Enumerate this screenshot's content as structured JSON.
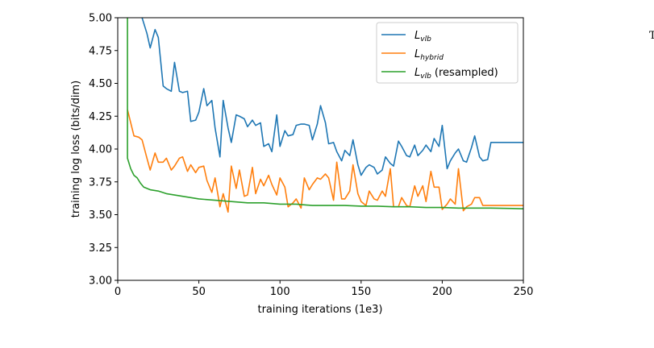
{
  "chart_data": {
    "type": "line",
    "xlabel": "training iterations (1e3)",
    "ylabel": "training log loss (bits/dim)",
    "xlim": [
      0,
      250
    ],
    "ylim": [
      3.0,
      5.0
    ],
    "x_ticks": [
      "0",
      "50",
      "100",
      "150",
      "200",
      "250"
    ],
    "y_ticks": [
      "3.00",
      "3.25",
      "3.50",
      "3.75",
      "4.00",
      "4.25",
      "4.50",
      "4.75",
      "5.00"
    ],
    "grid": false,
    "legend_position": "top-right",
    "edge_glyph": "T",
    "series": [
      {
        "name": "L_vlb",
        "legend_main": "L",
        "legend_sub": "vlb",
        "legend_suffix": "",
        "color": "#1f77b4",
        "x": [
          15,
          18,
          20,
          23,
          25,
          28,
          30,
          33,
          35,
          38,
          40,
          43,
          45,
          48,
          50,
          53,
          55,
          58,
          60,
          63,
          65,
          68,
          70,
          73,
          75,
          78,
          80,
          83,
          85,
          88,
          90,
          93,
          95,
          98,
          100,
          103,
          105,
          108,
          110,
          113,
          115,
          118,
          120,
          123,
          125,
          128,
          130,
          133,
          135,
          138,
          140,
          143,
          145,
          148,
          150,
          153,
          155,
          158,
          160,
          163,
          165,
          168,
          170,
          173,
          175,
          178,
          180,
          183,
          185,
          188,
          190,
          193,
          195,
          198,
          200,
          203,
          205,
          208,
          210,
          213,
          215,
          218,
          220,
          223,
          225,
          228,
          230,
          233,
          235,
          238,
          240,
          243,
          245,
          248,
          250
        ],
        "y": [
          5.0,
          4.88,
          4.77,
          4.91,
          4.85,
          4.48,
          4.46,
          4.44,
          4.66,
          4.44,
          4.43,
          4.44,
          4.21,
          4.22,
          4.28,
          4.46,
          4.33,
          4.37,
          4.16,
          3.94,
          4.37,
          4.16,
          4.05,
          4.26,
          4.25,
          4.23,
          4.17,
          4.22,
          4.18,
          4.2,
          4.02,
          4.04,
          3.98,
          4.26,
          4.02,
          4.14,
          4.1,
          4.11,
          4.18,
          4.19,
          4.19,
          4.18,
          4.07,
          4.19,
          4.33,
          4.2,
          4.04,
          4.05,
          3.98,
          3.91,
          3.99,
          3.95,
          4.07,
          3.88,
          3.8,
          3.86,
          3.88,
          3.86,
          3.81,
          3.84,
          3.94,
          3.89,
          3.87,
          4.06,
          4.02,
          3.95,
          3.94,
          4.03,
          3.95,
          3.99,
          4.03,
          3.98,
          4.08,
          4.02,
          4.18,
          3.85,
          3.91,
          3.97,
          4.0,
          3.91,
          3.9,
          4.01,
          4.1,
          3.94,
          3.91,
          3.92,
          4.05,
          4.05,
          4.05,
          4.05,
          4.05,
          4.05,
          4.05,
          4.05,
          4.05
        ]
      },
      {
        "name": "L_hybrid",
        "legend_main": "L",
        "legend_sub": "hybrid",
        "legend_suffix": "",
        "color": "#ff7f0e",
        "x": [
          6,
          8,
          10,
          13,
          15,
          18,
          20,
          23,
          25,
          28,
          30,
          33,
          35,
          38,
          40,
          43,
          45,
          48,
          50,
          53,
          55,
          58,
          60,
          63,
          65,
          68,
          70,
          73,
          75,
          78,
          80,
          83,
          85,
          88,
          90,
          93,
          95,
          98,
          100,
          103,
          105,
          108,
          110,
          113,
          115,
          118,
          120,
          123,
          125,
          128,
          130,
          133,
          135,
          138,
          140,
          143,
          145,
          148,
          150,
          153,
          155,
          158,
          160,
          163,
          165,
          168,
          170,
          173,
          175,
          178,
          180,
          183,
          185,
          188,
          190,
          193,
          195,
          198,
          200,
          203,
          205,
          208,
          210,
          213,
          215,
          218,
          220,
          223,
          225,
          228,
          230,
          233,
          235,
          238,
          240,
          243,
          245,
          248,
          250
        ],
        "y": [
          4.3,
          4.2,
          4.1,
          4.09,
          4.07,
          3.93,
          3.84,
          3.97,
          3.9,
          3.9,
          3.93,
          3.84,
          3.87,
          3.93,
          3.94,
          3.83,
          3.88,
          3.82,
          3.86,
          3.87,
          3.76,
          3.67,
          3.78,
          3.56,
          3.66,
          3.52,
          3.87,
          3.7,
          3.84,
          3.64,
          3.65,
          3.86,
          3.66,
          3.77,
          3.72,
          3.8,
          3.73,
          3.65,
          3.78,
          3.71,
          3.56,
          3.59,
          3.62,
          3.55,
          3.78,
          3.69,
          3.73,
          3.78,
          3.77,
          3.81,
          3.78,
          3.61,
          3.9,
          3.62,
          3.62,
          3.68,
          3.88,
          3.66,
          3.6,
          3.57,
          3.68,
          3.62,
          3.61,
          3.68,
          3.64,
          3.85,
          3.56,
          3.56,
          3.63,
          3.57,
          3.56,
          3.72,
          3.64,
          3.72,
          3.6,
          3.83,
          3.71,
          3.71,
          3.54,
          3.58,
          3.62,
          3.58,
          3.85,
          3.53,
          3.56,
          3.58,
          3.63,
          3.63,
          3.57,
          3.57,
          3.57,
          3.57,
          3.57,
          3.57,
          3.57,
          3.57,
          3.57,
          3.57,
          3.57
        ]
      },
      {
        "name": "L_vlb (resampled)",
        "legend_main": "L",
        "legend_sub": "vlb",
        "legend_suffix": " (resampled)",
        "color": "#2ca02c",
        "x": [
          6,
          6,
          8,
          10,
          12,
          14,
          16,
          18,
          20,
          25,
          30,
          35,
          40,
          45,
          50,
          60,
          70,
          80,
          90,
          100,
          110,
          120,
          130,
          140,
          150,
          160,
          170,
          180,
          190,
          200,
          210,
          220,
          230,
          240,
          250
        ],
        "y": [
          5.0,
          3.93,
          3.85,
          3.8,
          3.78,
          3.74,
          3.71,
          3.7,
          3.69,
          3.68,
          3.66,
          3.65,
          3.64,
          3.63,
          3.62,
          3.61,
          3.6,
          3.59,
          3.59,
          3.58,
          3.58,
          3.57,
          3.57,
          3.57,
          3.565,
          3.565,
          3.56,
          3.56,
          3.555,
          3.555,
          3.55,
          3.55,
          3.55,
          3.548,
          3.545
        ]
      }
    ]
  }
}
